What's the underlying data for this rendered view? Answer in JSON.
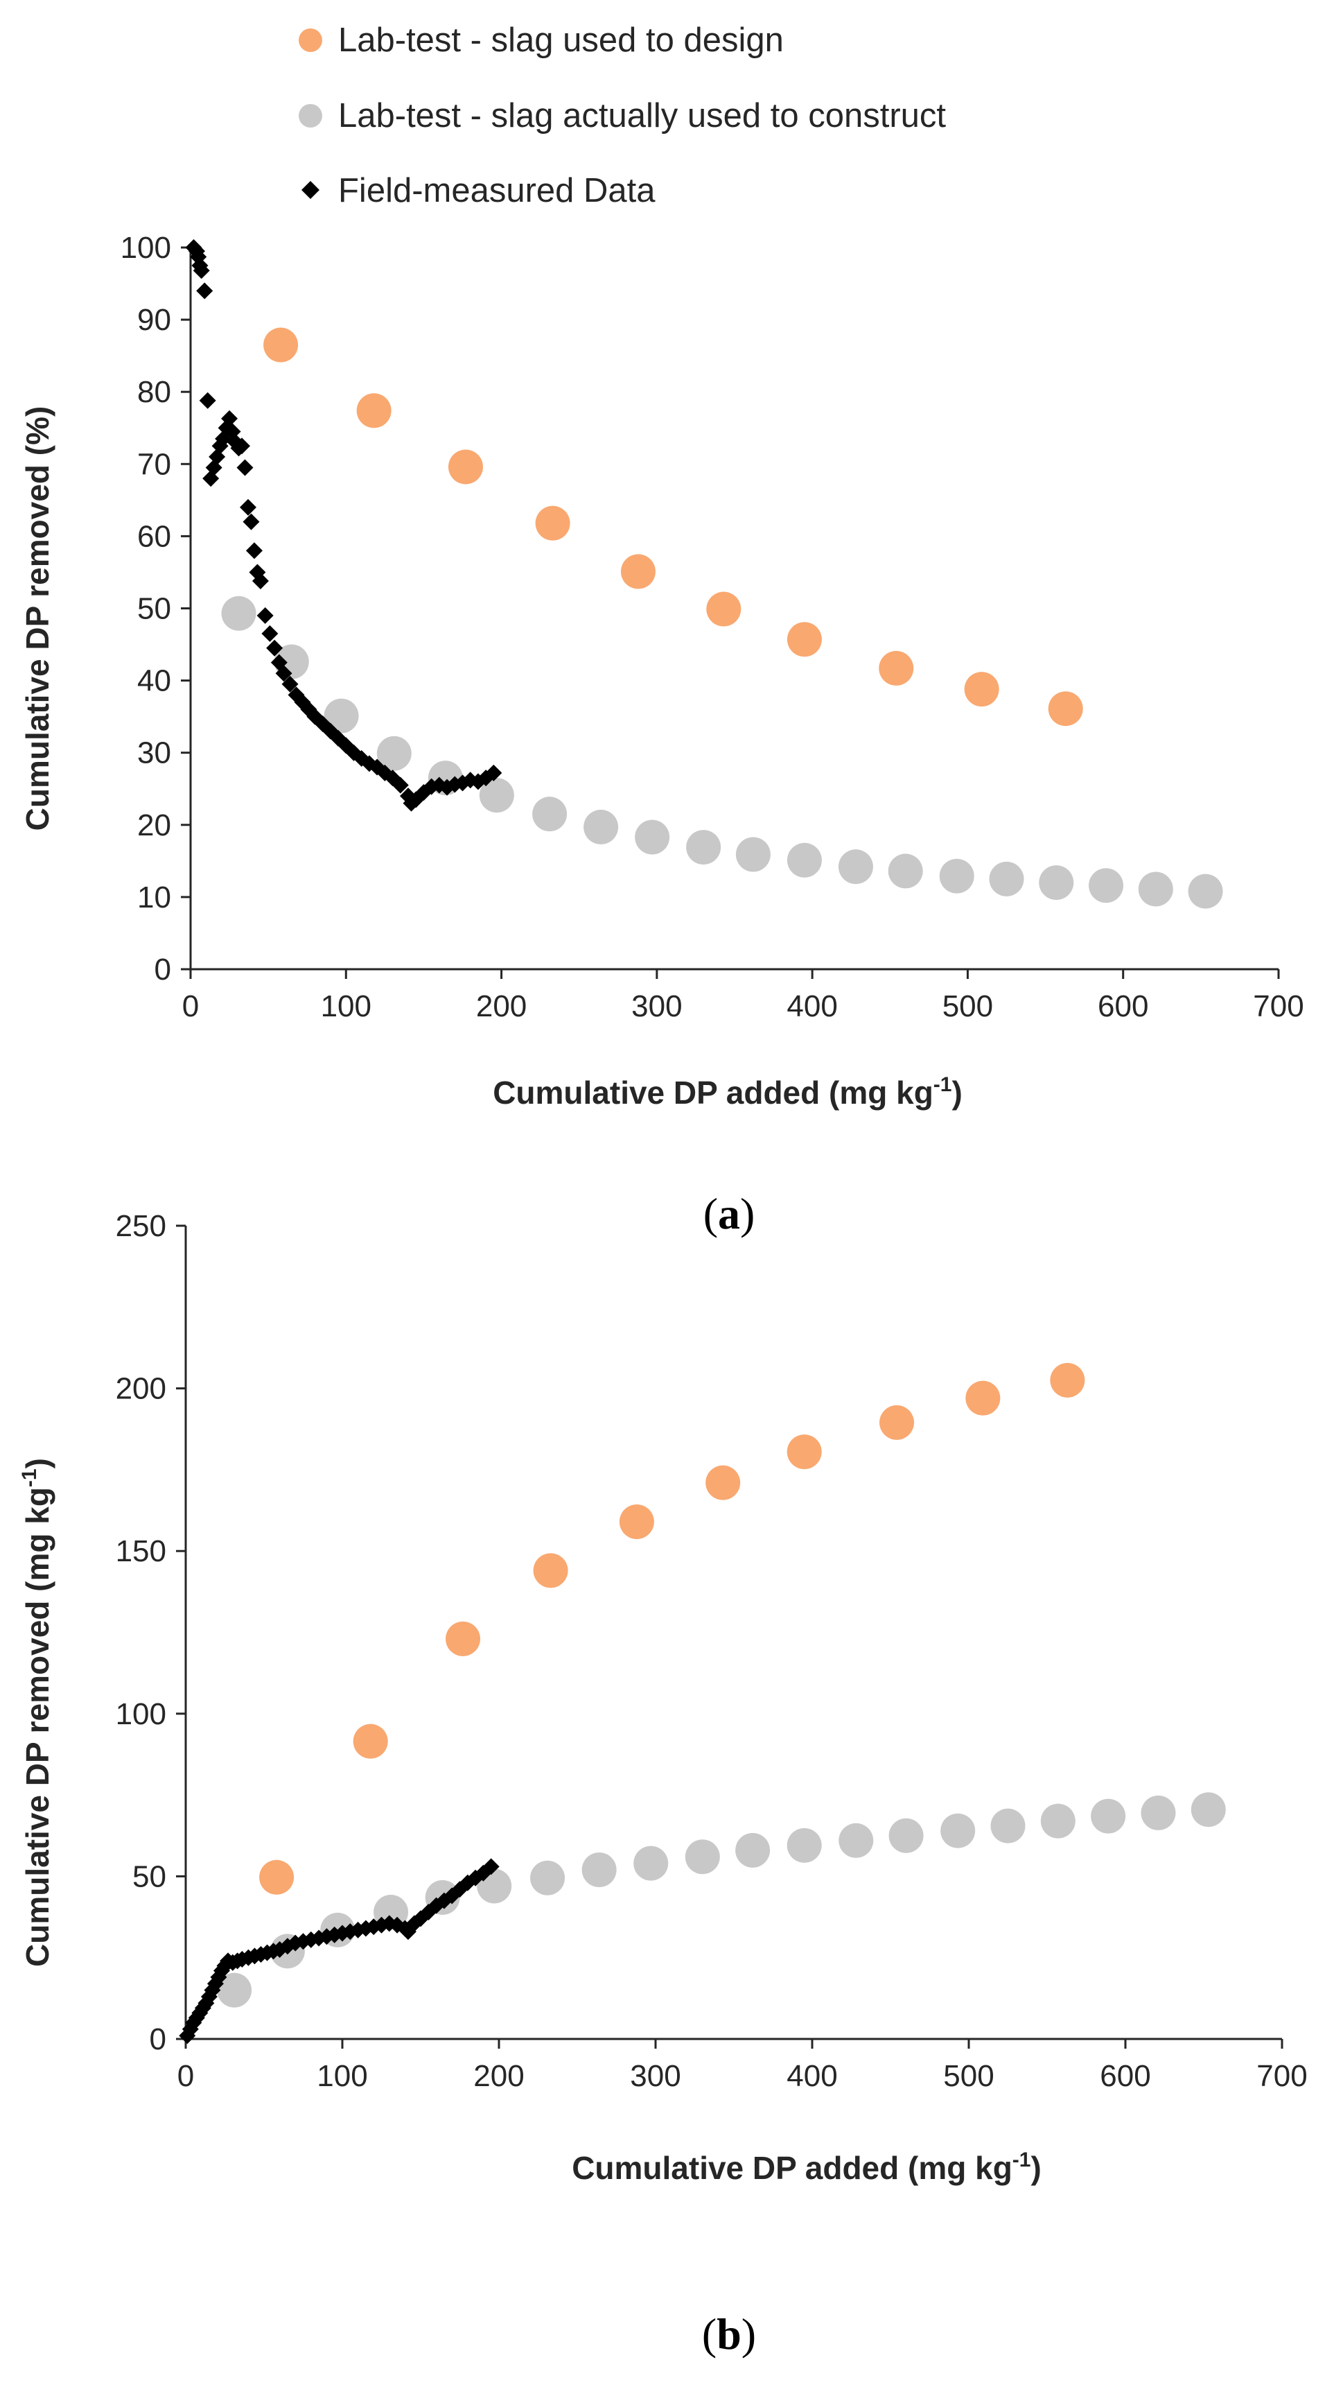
{
  "legend": [
    {
      "label": "Lab-test - slag used to design",
      "marker": "circle",
      "color": "#F9A870"
    },
    {
      "label": "Lab-test - slag actually used to construct",
      "marker": "circle",
      "color": "#C8C8C8"
    },
    {
      "label": "Field-measured Data",
      "marker": "diamond",
      "color": "#000000"
    }
  ],
  "captions": {
    "a": {
      "open": "(",
      "letter": "a",
      "close": ")"
    },
    "b": {
      "open": "(",
      "letter": "b",
      "close": ")"
    }
  },
  "chart_data": [
    {
      "id": "a",
      "type": "scatter",
      "title": "",
      "xlabel": "Cumulative DP added (mg kg",
      "xlabel_sup": "-1",
      "xlabel_end": ")",
      "ylabel": "Cumulative DP removed (%)",
      "xlim": [
        0,
        700
      ],
      "ylim": [
        0,
        100
      ],
      "xticks": [
        0,
        100,
        200,
        300,
        400,
        500,
        600,
        700
      ],
      "yticks": [
        0,
        10,
        20,
        30,
        40,
        50,
        60,
        70,
        80,
        90,
        100
      ],
      "series": [
        {
          "name": "Lab-test - slag used to design",
          "color": "#F9A870",
          "marker": "circle",
          "x": [
            58,
            118,
            177,
            233,
            288,
            343,
            395,
            454,
            509,
            563
          ],
          "y": [
            86.5,
            77.4,
            69.6,
            61.8,
            55.1,
            49.9,
            45.7,
            41.7,
            38.8,
            36.1
          ]
        },
        {
          "name": "Lab-test - slag actually used to construct",
          "color": "#C8C8C8",
          "marker": "circle",
          "x": [
            31,
            65,
            97,
            131,
            164,
            197,
            231,
            264,
            297,
            330,
            362,
            395,
            428,
            460,
            493,
            525,
            557,
            589,
            621,
            653
          ],
          "y": [
            49.3,
            42.6,
            35.1,
            29.9,
            26.5,
            24.1,
            21.5,
            19.7,
            18.3,
            16.9,
            15.9,
            15.1,
            14.2,
            13.6,
            12.9,
            12.5,
            12.0,
            11.6,
            11.1,
            10.8
          ]
        },
        {
          "name": "Field-measured Data",
          "color": "#000000",
          "marker": "diamond",
          "x": [
            2,
            4,
            5,
            6,
            7,
            9,
            11,
            13,
            15,
            17,
            19,
            21,
            23,
            25,
            27,
            29,
            31,
            33,
            35,
            37,
            39,
            41,
            43,
            45,
            48,
            51,
            54,
            57,
            60,
            64,
            68,
            72,
            76,
            80,
            85,
            90,
            95,
            100,
            105,
            110,
            115,
            120,
            125,
            130,
            135,
            140,
            142,
            145,
            150,
            155,
            160,
            165,
            170,
            175,
            180,
            185,
            190,
            195
          ],
          "y": [
            100,
            99.5,
            98.7,
            97.5,
            96.8,
            94,
            78.8,
            68,
            69.5,
            71,
            72.5,
            73.5,
            75,
            76.3,
            74.5,
            73,
            72.2,
            72.5,
            69.5,
            64,
            62,
            58,
            55,
            53.8,
            49,
            46.5,
            44.5,
            42.5,
            41,
            39.5,
            38,
            37,
            36,
            35,
            34,
            33,
            32,
            31,
            30,
            29.2,
            28.5,
            28,
            27.2,
            26.5,
            25.5,
            24,
            23,
            23.5,
            24.5,
            25.3,
            25.5,
            25.2,
            25.6,
            25.8,
            26.2,
            26,
            26.5,
            27.2
          ]
        }
      ]
    },
    {
      "id": "b",
      "type": "scatter",
      "title": "",
      "xlabel": "Cumulative DP added (mg kg",
      "xlabel_sup": "-1",
      "xlabel_end": ")",
      "ylabel": "Cumulative DP removed (mg kg",
      "ylabel_sup": "-1",
      "ylabel_end": ")",
      "xlim": [
        0,
        700
      ],
      "ylim": [
        0,
        250
      ],
      "xticks": [
        0,
        100,
        200,
        300,
        400,
        500,
        600,
        700
      ],
      "yticks": [
        0,
        50,
        100,
        150,
        200,
        250
      ],
      "series": [
        {
          "name": "Lab-test - slag used to design",
          "color": "#F9A870",
          "marker": "circle",
          "x": [
            58,
            118,
            177,
            233,
            288,
            343,
            395,
            454,
            509,
            563
          ],
          "y": [
            49.7,
            91.5,
            123,
            144,
            159,
            171,
            180.5,
            189.5,
            197,
            202.5
          ]
        },
        {
          "name": "Lab-test - slag actually used to construct",
          "color": "#C8C8C8",
          "marker": "circle",
          "x": [
            31,
            65,
            97,
            131,
            164,
            197,
            231,
            264,
            297,
            330,
            362,
            395,
            428,
            460,
            493,
            525,
            557,
            589,
            621,
            653
          ],
          "y": [
            15,
            27,
            33.5,
            39,
            43.5,
            47,
            49.5,
            52,
            54,
            56,
            58,
            59.5,
            61,
            62.5,
            64,
            65.5,
            67,
            68.5,
            69.5,
            70.5
          ]
        },
        {
          "name": "Field-measured Data",
          "color": "#000000",
          "marker": "diamond",
          "x": [
            1,
            3,
            5,
            7,
            9,
            11,
            13,
            15,
            17,
            19,
            21,
            23,
            25,
            27,
            30,
            33,
            36,
            40,
            44,
            48,
            52,
            56,
            60,
            65,
            70,
            75,
            80,
            85,
            90,
            95,
            100,
            105,
            110,
            115,
            120,
            125,
            130,
            135,
            140,
            142,
            146,
            150,
            155,
            160,
            165,
            170,
            175,
            180,
            185,
            190,
            195
          ],
          "y": [
            1,
            3,
            5,
            6.5,
            8,
            9.5,
            11,
            13,
            15,
            17,
            19,
            21,
            22.5,
            24,
            23.5,
            24,
            24.5,
            25,
            25.5,
            26,
            26.5,
            27,
            27.5,
            28.5,
            29.5,
            30,
            30.5,
            31,
            31.5,
            32,
            32.5,
            33,
            33.5,
            34,
            34.5,
            35,
            35.5,
            35,
            34,
            33,
            35.5,
            37,
            39,
            41,
            42.5,
            44,
            46,
            48,
            49.5,
            51,
            53
          ]
        }
      ]
    }
  ]
}
